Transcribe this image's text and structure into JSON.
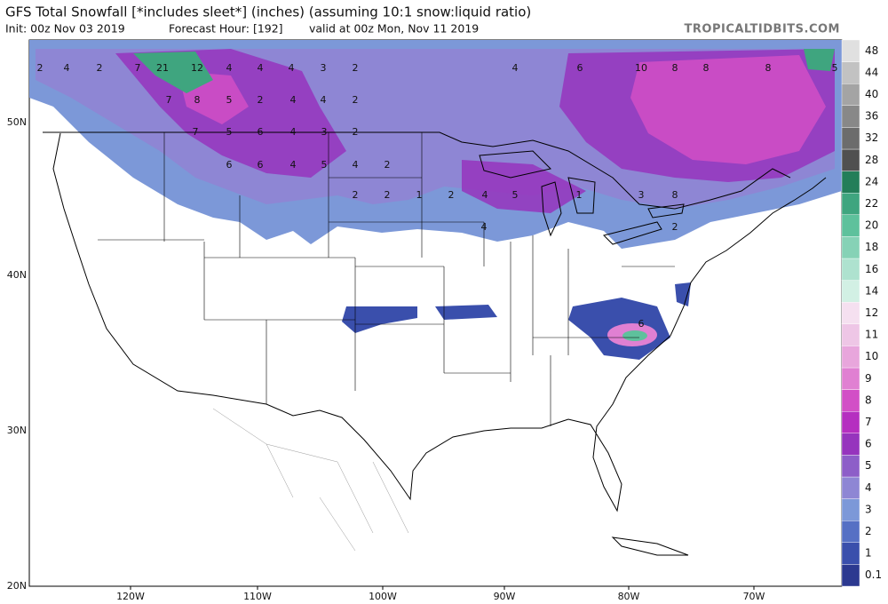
{
  "header": {
    "title": "GFS Total Snowfall [*includes sleet*] (inches) (assuming 10:1 snow:liquid ratio)",
    "init": "Init: 00z Nov 03 2019",
    "forecast_hour": "Forecast Hour: [192]",
    "valid": "valid at 00z Mon, Nov 11 2019",
    "brand": "TROPICALTIDBITS.COM"
  },
  "map": {
    "lat_labels": [
      "50N",
      "40N",
      "30N",
      "20N"
    ],
    "lon_labels": [
      "120W",
      "110W",
      "100W",
      "90W",
      "80W",
      "70W"
    ],
    "snow_labels": [
      "2",
      "4",
      "2",
      "7",
      "21",
      "12",
      "4",
      "4",
      "4",
      "3",
      "2",
      "4",
      "6",
      "10",
      "8",
      "8",
      "8",
      "5",
      "7",
      "8",
      "5",
      "2",
      "4",
      "4",
      "2",
      "7",
      "5",
      "6",
      "4",
      "3",
      "2",
      "6",
      "6",
      "4",
      "5",
      "4",
      "2",
      "4",
      "5",
      "3",
      "8",
      "2",
      "2",
      "1",
      "2",
      "4",
      "1",
      "2",
      "6"
    ]
  },
  "colorbar": {
    "levels": [
      0.1,
      1,
      2,
      3,
      4,
      5,
      6,
      7,
      8,
      9,
      10,
      11,
      12,
      14,
      16,
      18,
      20,
      22,
      24,
      28,
      32,
      36,
      40,
      44,
      48
    ],
    "colors": [
      "#2c3990",
      "#3a4fac",
      "#5670c4",
      "#7c98d8",
      "#8e86d4",
      "#8d5ec8",
      "#9634bd",
      "#b52fc0",
      "#d24fc6",
      "#e080d2",
      "#e8a6dc",
      "#eec6e6",
      "#f5e0f0",
      "#d2f0e4",
      "#aee2cf",
      "#86d2b6",
      "#5ec19c",
      "#3fa57f",
      "#237e59",
      "#505050",
      "#6c6c6c",
      "#888888",
      "#a4a4a4",
      "#c2c2c2",
      "#e0e0e0"
    ]
  }
}
